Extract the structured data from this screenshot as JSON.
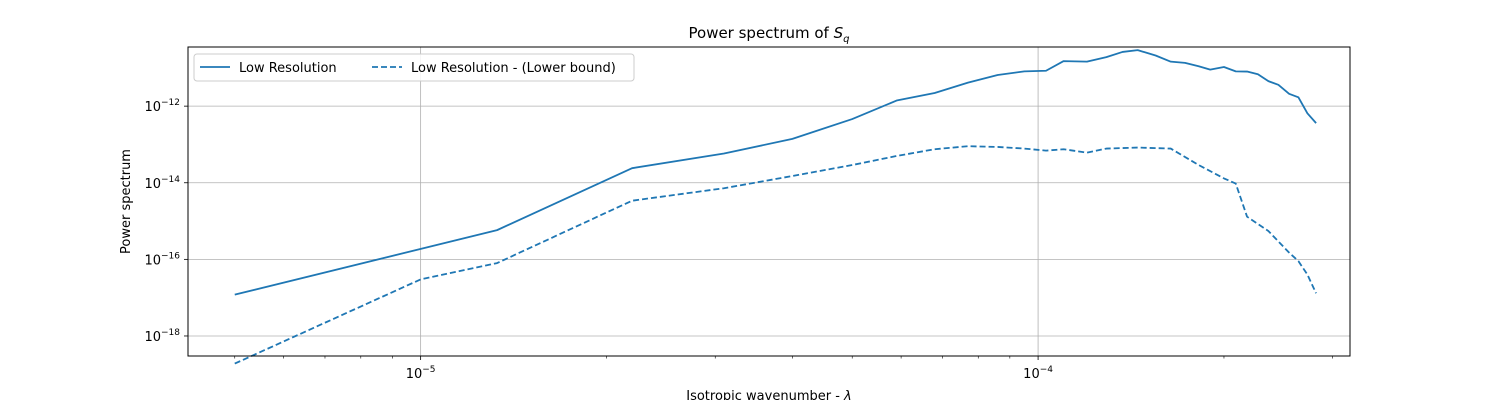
{
  "chart_data": {
    "type": "line",
    "title": "Power spectrum of",
    "title_math": "S",
    "title_math_sub": "q",
    "xlabel": "Isotropic wavenumber -",
    "xlabel_math": "λ",
    "ylabel": "Power spectrum",
    "xscale": "log",
    "yscale": "log",
    "xlim": [
      4.2e-06,
      0.00032
    ],
    "ylim": [
      3e-19,
      3.5e-11
    ],
    "grid": true,
    "legend_position": "top-left",
    "x_ticks": [
      {
        "value": 1e-05,
        "base": "10",
        "exp": "−5"
      },
      {
        "value": 0.0001,
        "base": "10",
        "exp": "−4"
      }
    ],
    "y_ticks": [
      {
        "value": 1e-18,
        "base": "10",
        "exp": "−18"
      },
      {
        "value": 1e-16,
        "base": "10",
        "exp": "−16"
      },
      {
        "value": 1e-14,
        "base": "10",
        "exp": "−14"
      },
      {
        "value": 1e-12,
        "base": "10",
        "exp": "−12"
      }
    ],
    "color": "#1f77b4",
    "series": [
      {
        "name": "Low Resolution",
        "dash": "solid",
        "x": [
          5e-06,
          1.33e-05,
          2.2e-05,
          3.1e-05,
          4e-05,
          5e-05,
          5.9e-05,
          6.8e-05,
          7.7e-05,
          8.6e-05,
          9.5e-05,
          0.000103,
          0.00011,
          0.00012,
          0.000129,
          0.000137,
          0.000145,
          0.000155,
          0.000164,
          0.000173,
          0.000182,
          0.00019,
          0.0002,
          0.000209,
          0.000218,
          0.000227,
          0.000236,
          0.000245,
          0.000255,
          0.000264,
          0.000273,
          0.000282
        ],
        "y": [
          1.2e-17,
          5.8e-16,
          2.4e-14,
          5.8e-14,
          1.4e-13,
          4.6e-13,
          1.4e-12,
          2.2e-12,
          4.1e-12,
          6.5e-12,
          8.1e-12,
          8.4e-12,
          1.5e-11,
          1.45e-11,
          1.9e-11,
          2.6e-11,
          2.9e-11,
          2.1e-11,
          1.45e-11,
          1.35e-11,
          1.1e-11,
          9e-12,
          1.05e-11,
          8.1e-12,
          8e-12,
          6.8e-12,
          4.5e-12,
          3.6e-12,
          2.1e-12,
          1.7e-12,
          6.5e-13,
          3.6e-13
        ]
      },
      {
        "name": "Low Resolution - (Lower bound)",
        "dash": "dashed",
        "x": [
          5e-06,
          1e-05,
          1.33e-05,
          2.2e-05,
          3.1e-05,
          4e-05,
          5e-05,
          5.9e-05,
          6.8e-05,
          7.7e-05,
          8.6e-05,
          9.5e-05,
          0.000103,
          0.00011,
          0.00012,
          0.000129,
          0.000145,
          0.000164,
          0.000182,
          0.0002,
          0.000209,
          0.000218,
          0.000236,
          0.000255,
          0.000264,
          0.000273,
          0.000282
        ],
        "y": [
          1.9e-19,
          3e-17,
          8e-17,
          3.4e-15,
          7.2e-15,
          1.5e-14,
          2.9e-14,
          5e-14,
          7.5e-14,
          9e-14,
          8.6e-14,
          7.8e-14,
          6.9e-14,
          7.5e-14,
          6.1e-14,
          7.8e-14,
          8.3e-14,
          7.8e-14,
          2.9e-14,
          1.3e-14,
          9.5e-15,
          1.3e-15,
          5.5e-16,
          1.5e-16,
          9e-17,
          4e-17,
          1.3e-17
        ]
      }
    ]
  }
}
